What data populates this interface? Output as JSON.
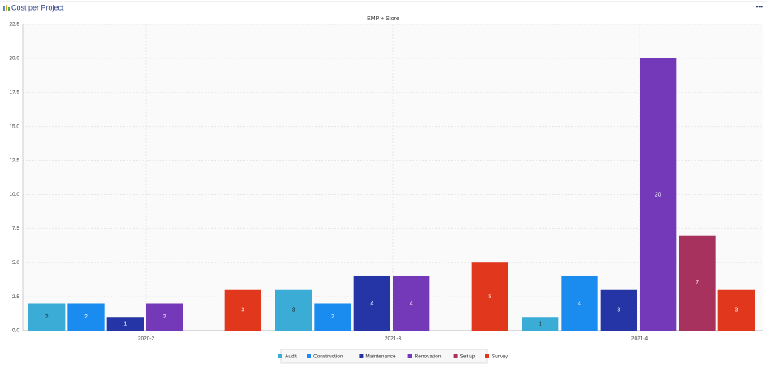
{
  "header": {
    "title": "Cost per Project",
    "menu": "•••"
  },
  "chart_data": {
    "type": "bar",
    "title": "EMP + Store",
    "categories": [
      "2020-2",
      "2021-3",
      "2021-4"
    ],
    "series": [
      {
        "name": "Audit",
        "color": "#3aacd6",
        "values": [
          2,
          3,
          1
        ]
      },
      {
        "name": "Construction",
        "color": "#1a8cf0",
        "values": [
          2,
          2,
          4
        ]
      },
      {
        "name": "Maintenance",
        "color": "#2535a6",
        "values": [
          1,
          4,
          3
        ]
      },
      {
        "name": "Renovation",
        "color": "#7439b8",
        "values": [
          2,
          4,
          20
        ]
      },
      {
        "name": "Set up",
        "color": "#a8325e",
        "values": [
          null,
          null,
          7
        ]
      },
      {
        "name": "Survey",
        "color": "#e0371d",
        "values": [
          3,
          5,
          3
        ]
      }
    ],
    "ylim": [
      0,
      22.5
    ],
    "yticks": [
      {
        "value": 0,
        "label": "0.0"
      },
      2.5,
      {
        "value": 5,
        "label": "5.0"
      },
      7.5,
      {
        "value": 10,
        "label": "10.0"
      },
      12.5,
      {
        "value": 15,
        "label": "15.0"
      },
      17.5,
      {
        "value": 20,
        "label": "20.0"
      },
      22.5
    ],
    "grid": true,
    "legend": "bottom"
  }
}
